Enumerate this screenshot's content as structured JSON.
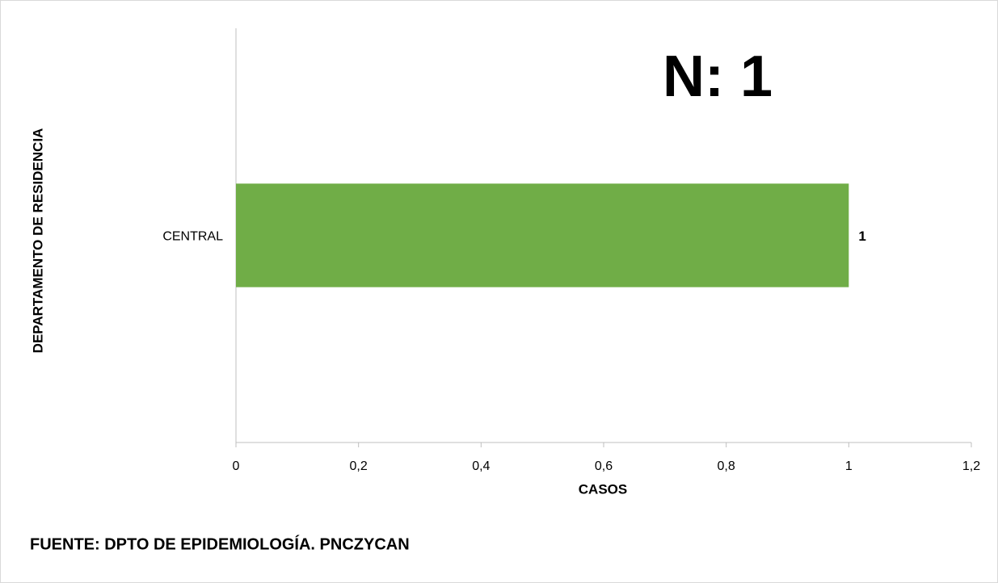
{
  "chart_data": {
    "type": "barh",
    "annotation": "N: 1",
    "xlabel": "CASOS",
    "ylabel": "DEPARTAMENTO DE RESIDENCIA",
    "source": "FUENTE: DPTO DE EPIDEMIOLOGÍA.  PNCZYCAN",
    "categories": [
      "CENTRAL"
    ],
    "values": [
      1
    ],
    "color": "#70ad47",
    "xlim": [
      0,
      1.2
    ],
    "xticks": [
      0,
      {
        "value": 0.2,
        "label": "0,2"
      },
      {
        "value": 0.4,
        "label": "0,4"
      },
      {
        "value": 0.6,
        "label": "0,6"
      },
      {
        "value": 0.8,
        "label": "0,8"
      },
      1,
      {
        "value": 1.2,
        "label": "1,2"
      }
    ],
    "grid": false
  }
}
